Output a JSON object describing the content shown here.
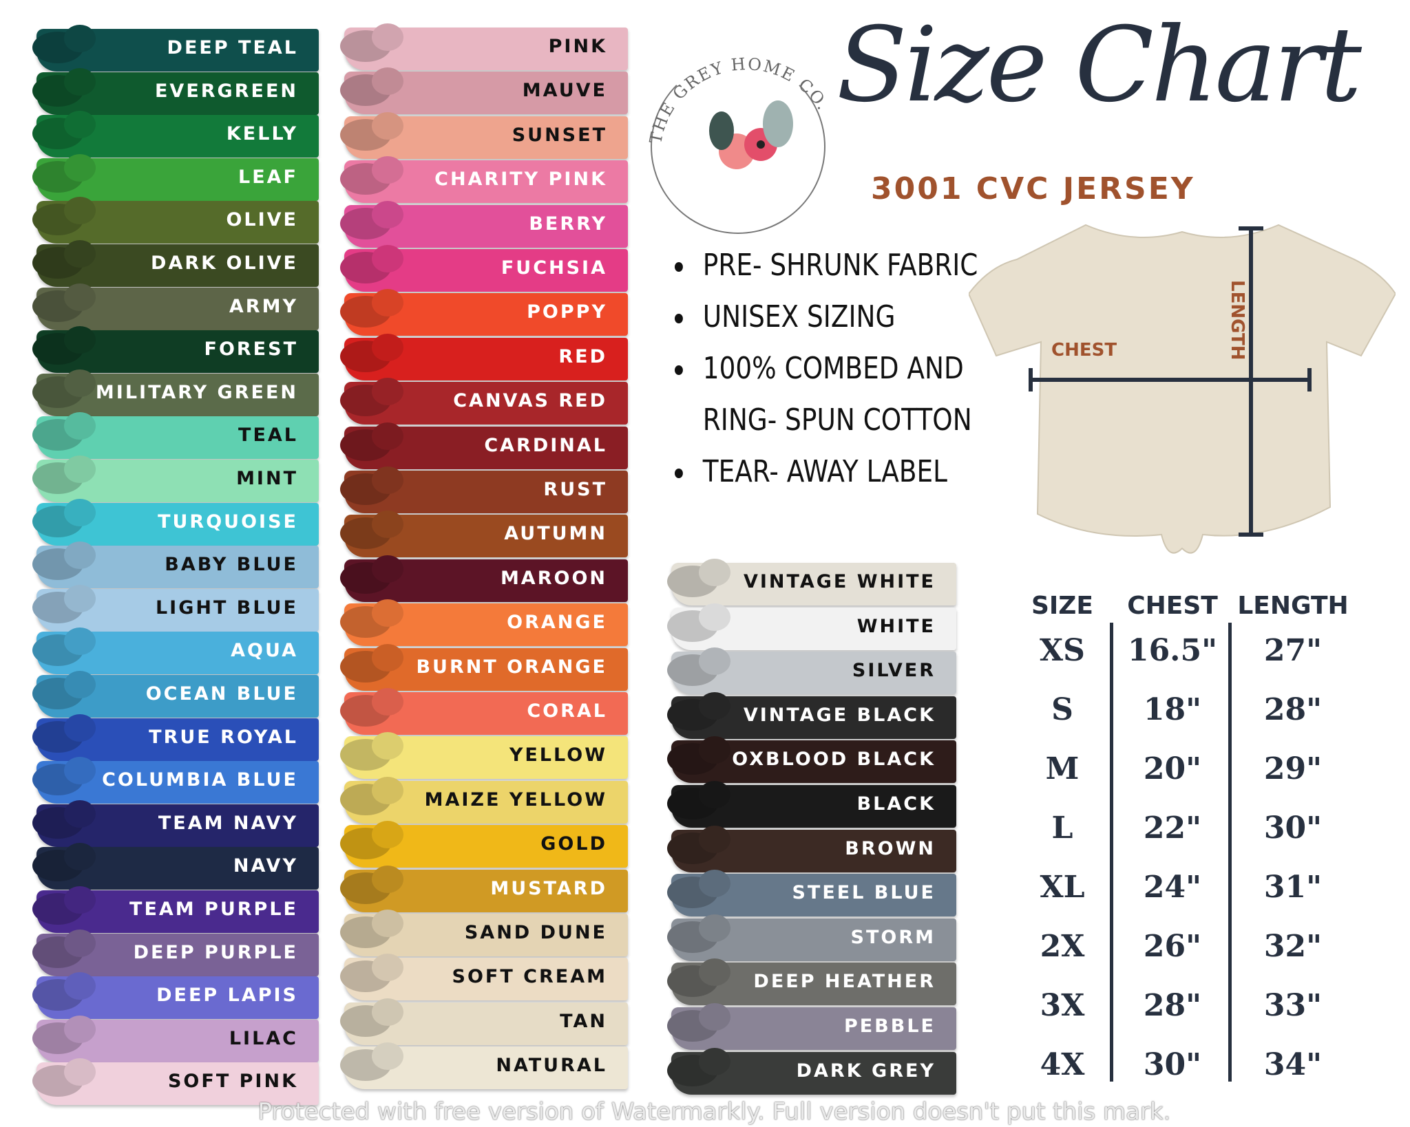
{
  "logo": {
    "text": "THE GREY HOME CO."
  },
  "title": "Size Chart",
  "subtitle": "3001 CVC JERSEY",
  "features": [
    "PRE- SHRUNK FABRIC",
    "UNISEX SIZING",
    "100% COMBED AND",
    "RING- SPUN COTTON",
    "TEAR- AWAY LABEL"
  ],
  "feature_bullets": [
    true,
    true,
    true,
    false,
    true
  ],
  "shirt": {
    "chest_label": "CHEST",
    "length_label": "LENGTH",
    "color": "#e8e0cf",
    "measure_color": "#27303f",
    "label_color": "#a0522d"
  },
  "size_table": {
    "headers": [
      "SIZE",
      "CHEST",
      "LENGTH"
    ],
    "rows": [
      [
        "XS",
        "16.5\"",
        "27\""
      ],
      [
        "S",
        "18\"",
        "28\""
      ],
      [
        "M",
        "20\"",
        "29\""
      ],
      [
        "L",
        "22\"",
        "30\""
      ],
      [
        "XL",
        "24\"",
        "31\""
      ],
      [
        "2X",
        "26\"",
        "32\""
      ],
      [
        "3X",
        "28\"",
        "33\""
      ],
      [
        "4X",
        "30\"",
        "34\""
      ]
    ]
  },
  "colors": [
    [
      [
        "DEEP TEAL",
        "#0f4f4c"
      ],
      [
        "EVERGREEN",
        "#0f5a2e"
      ],
      [
        "KELLY",
        "#127a3a"
      ],
      [
        "LEAF",
        "#3aa43a"
      ],
      [
        "OLIVE",
        "#556b2a"
      ],
      [
        "DARK OLIVE",
        "#3b4a22"
      ],
      [
        "ARMY",
        "#5d6548"
      ],
      [
        "FOREST",
        "#0f3d24"
      ],
      [
        "MILITARY GREEN",
        "#5b6b4a"
      ],
      [
        "TEAL",
        "#5fd0b0"
      ],
      [
        "MINT",
        "#8ee0b4"
      ],
      [
        "TURQUOISE",
        "#3ec4d4"
      ],
      [
        "BABY BLUE",
        "#8fbcd8"
      ],
      [
        "LIGHT BLUE",
        "#a6cbe6"
      ],
      [
        "AQUA",
        "#4ab0dc"
      ],
      [
        "OCEAN BLUE",
        "#3d9cc8"
      ],
      [
        "TRUE ROYAL",
        "#2a4fb8"
      ],
      [
        "COLUMBIA BLUE",
        "#3a78d4"
      ],
      [
        "TEAM NAVY",
        "#25256a"
      ],
      [
        "NAVY",
        "#1e2a45"
      ],
      [
        "TEAM PURPLE",
        "#4a2a8e"
      ],
      [
        "DEEP PURPLE",
        "#7a6296"
      ],
      [
        "DEEP LAPIS",
        "#6a6ad0"
      ],
      [
        "LILAC",
        "#c6a0cc"
      ],
      [
        "SOFT PINK",
        "#f0d0dc"
      ]
    ],
    [
      [
        "PINK",
        "#e8b6c2"
      ],
      [
        "MAUVE",
        "#d69aa6"
      ],
      [
        "SUNSET",
        "#eea48e"
      ],
      [
        "CHARITY PINK",
        "#ec7aa4"
      ],
      [
        "BERRY",
        "#e2509a"
      ],
      [
        "FUCHSIA",
        "#e43c86"
      ],
      [
        "POPPY",
        "#f04a2a"
      ],
      [
        "RED",
        "#d8201e"
      ],
      [
        "CANVAS RED",
        "#a8262a"
      ],
      [
        "CARDINAL",
        "#8a1e24"
      ],
      [
        "RUST",
        "#8e3a22"
      ],
      [
        "AUTUMN",
        "#9a4a20"
      ],
      [
        "MAROON",
        "#5c1426"
      ],
      [
        "ORANGE",
        "#f47a3a"
      ],
      [
        "BURNT ORANGE",
        "#e06a2a"
      ],
      [
        "CORAL",
        "#f26a54"
      ],
      [
        "YELLOW",
        "#f4e47a"
      ],
      [
        "MAIZE YELLOW",
        "#ecd46a"
      ],
      [
        "GOLD",
        "#f0b818"
      ],
      [
        "MUSTARD",
        "#d09a24"
      ],
      [
        "SAND DUNE",
        "#e4d4b4"
      ],
      [
        "SOFT CREAM",
        "#ecdcc4"
      ],
      [
        "TAN",
        "#e6dcc6"
      ],
      [
        "NATURAL",
        "#ede6d4"
      ]
    ],
    [
      [
        "VINTAGE WHITE",
        "#e4e0d6"
      ],
      [
        "WHITE",
        "#f2f2f2"
      ],
      [
        "SILVER",
        "#c4c8cc"
      ],
      [
        "VINTAGE BLACK",
        "#2a2a2a"
      ],
      [
        "OXBLOOD BLACK",
        "#2e1c1a"
      ],
      [
        "BLACK",
        "#1a1a1a"
      ],
      [
        "BROWN",
        "#3c2a24"
      ],
      [
        "STEEL BLUE",
        "#66788a"
      ],
      [
        "STORM",
        "#8a9098"
      ],
      [
        "DEEP HEATHER",
        "#6e6e6a"
      ],
      [
        "PEBBLE",
        "#8a8496"
      ],
      [
        "DARK GREY",
        "#3a3c3a"
      ]
    ]
  ],
  "watermark": "Protected with free version of Watermarkly. Full version doesn't put this mark."
}
